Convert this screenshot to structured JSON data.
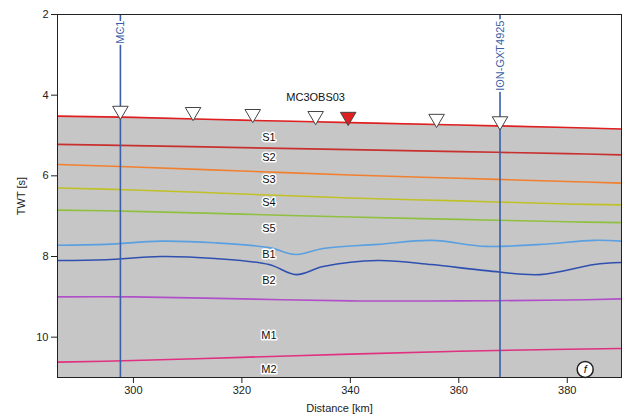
{
  "chart_data": {
    "type": "line",
    "x_label": "Distance [km]",
    "y_label": "TWT [s]",
    "xlim": [
      286,
      390
    ],
    "ylim": [
      2,
      11
    ],
    "xticks": [
      300,
      320,
      340,
      360,
      380
    ],
    "yticks": [
      2,
      4,
      6,
      8,
      10
    ],
    "series": [
      {
        "color": "#e02020",
        "x": [
          286,
          300,
          320,
          340,
          360,
          380,
          390
        ],
        "values": [
          4.52,
          4.55,
          4.62,
          4.68,
          4.74,
          4.8,
          4.84
        ]
      },
      {
        "color": "#c83030",
        "x": [
          286,
          300,
          320,
          340,
          360,
          380,
          390
        ],
        "values": [
          5.22,
          5.25,
          5.3,
          5.35,
          5.4,
          5.45,
          5.48
        ]
      },
      {
        "color": "#f08030",
        "x": [
          286,
          300,
          320,
          340,
          360,
          380,
          390
        ],
        "values": [
          5.72,
          5.78,
          5.88,
          5.98,
          6.06,
          6.14,
          6.18
        ]
      },
      {
        "color": "#c0c028",
        "x": [
          286,
          300,
          320,
          340,
          360,
          380,
          390
        ],
        "values": [
          6.3,
          6.35,
          6.45,
          6.55,
          6.62,
          6.7,
          6.72
        ]
      },
      {
        "color": "#90c040",
        "x": [
          286,
          300,
          320,
          340,
          360,
          380,
          390
        ],
        "values": [
          6.85,
          6.88,
          6.95,
          7.02,
          7.08,
          7.14,
          7.16
        ]
      },
      {
        "color": "#5aa0e0",
        "x": [
          286,
          295,
          305,
          315,
          325,
          330,
          335,
          345,
          355,
          365,
          375,
          385,
          390
        ],
        "values": [
          7.72,
          7.7,
          7.62,
          7.66,
          7.78,
          7.95,
          7.8,
          7.7,
          7.6,
          7.75,
          7.7,
          7.6,
          7.62
        ]
      },
      {
        "color": "#3050b0",
        "x": [
          286,
          295,
          305,
          315,
          325,
          330,
          335,
          345,
          355,
          365,
          375,
          385,
          390
        ],
        "values": [
          8.1,
          8.08,
          8.0,
          8.05,
          8.2,
          8.45,
          8.25,
          8.1,
          8.2,
          8.35,
          8.45,
          8.2,
          8.15
        ]
      },
      {
        "color": "#b050c8",
        "x": [
          286,
          300,
          320,
          340,
          360,
          380,
          390
        ],
        "values": [
          9.0,
          9.0,
          9.05,
          9.1,
          9.1,
          9.08,
          9.05
        ]
      },
      {
        "color": "#e03080",
        "x": [
          286,
          300,
          320,
          340,
          360,
          380,
          390
        ],
        "values": [
          10.62,
          10.58,
          10.5,
          10.42,
          10.35,
          10.3,
          10.28
        ]
      }
    ],
    "annotations": [
      {
        "text": "S1",
        "x": 325,
        "y": 5.05
      },
      {
        "text": "S2",
        "x": 325,
        "y": 5.55
      },
      {
        "text": "S3",
        "x": 325,
        "y": 6.1
      },
      {
        "text": "S4",
        "x": 325,
        "y": 6.65
      },
      {
        "text": "S5",
        "x": 325,
        "y": 7.3
      },
      {
        "text": "B1",
        "x": 325,
        "y": 7.95
      },
      {
        "text": "B2",
        "x": 325,
        "y": 8.6
      },
      {
        "text": "M1",
        "x": 325,
        "y": 9.95
      },
      {
        "text": "M2",
        "x": 325,
        "y": 10.8
      }
    ],
    "profiles": [
      {
        "label": "MC1",
        "x": 297.6,
        "color": "#3a5fa8"
      },
      {
        "label": "ION-GXT4925",
        "x": 367.6,
        "color": "#3a5fa8"
      }
    ],
    "stations": {
      "label": "MC3OBS03",
      "label_x": 333.6,
      "label_y": 4.05,
      "x": [
        297.6,
        311,
        322,
        333.6,
        339.6,
        355.9,
        367.6
      ],
      "y": [
        4.42,
        4.45,
        4.5,
        4.55,
        4.57,
        4.62,
        4.68
      ],
      "colors": [
        "#ffffff",
        "#ffffff",
        "#ffffff",
        "#ffffff",
        "#e02020",
        "#ffffff",
        "#ffffff"
      ]
    },
    "panel_label": "f",
    "panel_label_x": 383.3,
    "panel_label_y": 10.8
  }
}
